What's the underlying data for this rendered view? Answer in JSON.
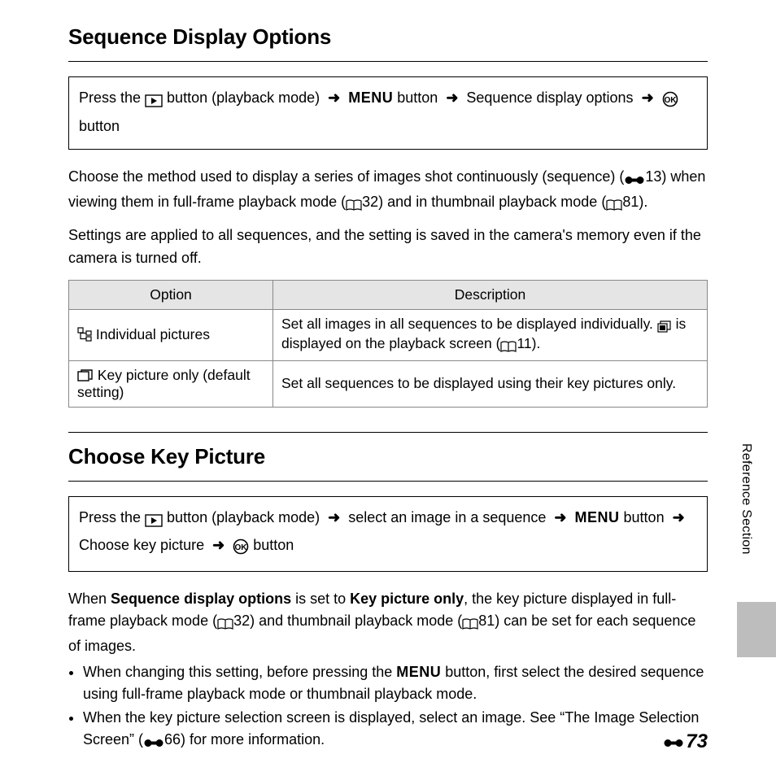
{
  "section1": {
    "heading": "Sequence Display Options",
    "nav_parts": [
      "Press the ",
      "@PLAY",
      " button (playback mode) ",
      "@ARROW",
      " ",
      "@MENU",
      " button ",
      "@ARROW",
      " Sequence display options ",
      "@ARROW",
      " ",
      "@OK",
      " button"
    ],
    "para1_parts": [
      "Choose the method used to display a series of images shot continuously (sequence) (",
      "@REF",
      "13) when viewing them in full-frame playback mode (",
      "@BOOK",
      "32) and in thumbnail playback mode (",
      "@BOOK",
      "81)."
    ],
    "para2": "Settings are applied to all sequences, and the setting is saved in the camera's memory even if the camera is turned off.",
    "table": {
      "headers": [
        "Option",
        "Description"
      ],
      "rows": [
        {
          "opt_icon": "@TREE",
          "opt_text": " Individual pictures",
          "desc_parts": [
            "Set all images in all sequences to be displayed individually. ",
            "@STACK",
            " is displayed on the playback screen (",
            "@BOOK",
            "11)."
          ]
        },
        {
          "opt_icon": "@FRAMES",
          "opt_text": " Key picture only (default setting)",
          "desc_parts": [
            "Set all sequences to be displayed using their key pictures only."
          ]
        }
      ]
    }
  },
  "section2": {
    "heading": "Choose Key Picture",
    "nav_parts": [
      "Press the ",
      "@PLAY",
      " button (playback mode) ",
      "@ARROW",
      " select an image in a sequence ",
      "@ARROW",
      " ",
      "@MENU",
      " button ",
      "@ARROW",
      " Choose key picture ",
      "@ARROW",
      " ",
      "@OK",
      " button"
    ],
    "para_parts": [
      "When ",
      "@B:Sequence display options",
      " is set to ",
      "@B:Key picture only",
      ", the key picture displayed in full-frame playback mode (",
      "@BOOK",
      "32) and thumbnail playback mode (",
      "@BOOK",
      "81) can be set for each sequence of images."
    ],
    "bullets": [
      [
        "When changing this setting, before pressing the ",
        "@MENU",
        " button, first select the desired sequence using full-frame playback mode or thumbnail playback mode."
      ],
      [
        "When the key picture selection screen is displayed, select an image. See “The Image Selection Screen” (",
        "@REF",
        "66) for more information."
      ]
    ]
  },
  "side_label": "Reference Section",
  "page_number": "73"
}
